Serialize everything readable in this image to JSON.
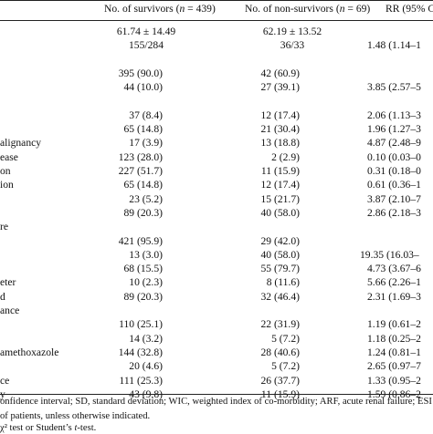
{
  "header": {
    "survivors": "No. of survivors (n = 439)",
    "nonsurvivors": "No. of non-survivors (n = 69)",
    "rr": "RR (95% C"
  },
  "rows": [
    {
      "label": "",
      "s": "61.74 ± 14.49",
      "n": "62.19 ± 13.52",
      "rr": "",
      "center": true
    },
    {
      "label": "",
      "s": "155/284",
      "n": "36/33",
      "rr": "1.48 (1.14–1",
      "center": true
    },
    {
      "label": "",
      "s": "",
      "n": "",
      "rr": ""
    },
    {
      "label": "",
      "s": "395 (90.0)",
      "n": "42 (60.9)",
      "rr": ""
    },
    {
      "label": "",
      "s": "44 (10.0)",
      "n": "27 (39.1)",
      "rr": "3.85 (2.57–5"
    },
    {
      "label": "",
      "s": "",
      "n": "",
      "rr": ""
    },
    {
      "label": "",
      "s": "37 (8.4)",
      "n": "12 (17.4)",
      "rr": "2.06 (1.13–3"
    },
    {
      "label": "",
      "s": "65 (14.8)",
      "n": "21 (30.4)",
      "rr": "1.96 (1.27–3"
    },
    {
      "label": "alignancy",
      "s": "17 (3.9)",
      "n": "13 (18.8)",
      "rr": "4.87 (2.48–9"
    },
    {
      "label": "ease",
      "s": "123 (28.0)",
      "n": "2 (2.9)",
      "rr": "0.10 (0.03–0"
    },
    {
      "label": "on",
      "s": "227 (51.7)",
      "n": "11 (15.9)",
      "rr": "0.31 (0.18–0"
    },
    {
      "label": "ion",
      "s": "65 (14.8)",
      "n": "12 (17.4)",
      "rr": "0.61 (0.36–1"
    },
    {
      "label": "",
      "s": "23 (5.2)",
      "n": "15 (21.7)",
      "rr": "3.87 (2.10–7"
    },
    {
      "label": "",
      "s": "89 (20.3)",
      "n": "40 (58.0)",
      "rr": "2.86 (2.18–3"
    },
    {
      "label": "re",
      "s": "",
      "n": "",
      "rr": ""
    },
    {
      "label": "",
      "s": "421 (95.9)",
      "n": "29 (42.0)",
      "rr": ""
    },
    {
      "label": "",
      "s": "13 (3.0)",
      "n": "40 (58.0)",
      "rr": "19.35 (16.03–"
    },
    {
      "label": "",
      "s": "68 (15.5)",
      "n": "55 (79.7)",
      "rr": "4.73 (3.67–6"
    },
    {
      "label": "eter",
      "s": "10 (2.3)",
      "n": "8 (11.6)",
      "rr": "5.66 (2.26–1"
    },
    {
      "label": "d",
      "s": "89 (20.3)",
      "n": "32 (46.4)",
      "rr": "2.31 (1.69–3"
    },
    {
      "label": "ance",
      "s": "",
      "n": "",
      "rr": ""
    },
    {
      "label": "",
      "s": "110 (25.1)",
      "n": "22 (31.9)",
      "rr": "1.19 (0.61–2"
    },
    {
      "label": "",
      "s": "14 (3.2)",
      "n": "5 (7.2)",
      "rr": "1.18 (0.25–2"
    },
    {
      "label": "amethoxazole",
      "s": "144 (32.8)",
      "n": "28 (40.6)",
      "rr": "1.24 (0.81–1"
    },
    {
      "label": "",
      "s": "20 (4.6)",
      "n": "5 (7.2)",
      "rr": "2.65 (0.97–7"
    },
    {
      "label": "ce",
      "s": "111 (25.3)",
      "n": "26 (37.7)",
      "rr": "1.33 (0.95–2"
    },
    {
      "label": "y",
      "s": "43 (9.8)",
      "n": "11 (15.9)",
      "rr": "1.59 (0.86–2"
    }
  ],
  "footnotes": [
    "onfidence interval; SD, standard deviation; WIC, weighted index of co-morbidity; ARF, acute renal failure; ESI",
    "of patients, unless otherwise indicated.",
    "χ² test or Student’s t-test."
  ]
}
